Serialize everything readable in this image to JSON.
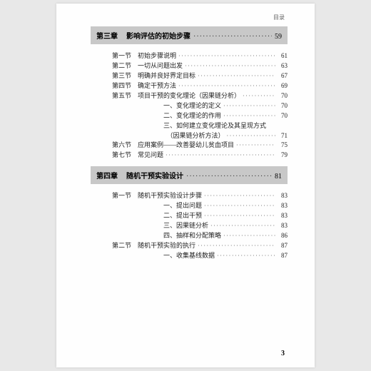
{
  "running_head": "目录",
  "page_number": "3",
  "dot_fill": "······························································",
  "chapters": [
    {
      "label": "第三章",
      "title": "影响评估的初始步骤",
      "page": "59",
      "entries": [
        {
          "sec": "第一节",
          "title": "初始步骤说明",
          "page": "61",
          "sub": false
        },
        {
          "sec": "第二节",
          "title": "一切从问题出发",
          "page": "63",
          "sub": false
        },
        {
          "sec": "第三节",
          "title": "明确并良好界定目标",
          "page": "67",
          "sub": false
        },
        {
          "sec": "第四节",
          "title": "确定干预方法",
          "page": "69",
          "sub": false
        },
        {
          "sec": "第五节",
          "title": "项目干预的变化理论（因果链分析）",
          "page": "70",
          "sub": false
        },
        {
          "sec": "",
          "title": "一、变化理论的定义",
          "page": "70",
          "sub": true
        },
        {
          "sec": "",
          "title": "二、变化理论的作用",
          "page": "70",
          "sub": true
        },
        {
          "sec": "",
          "title": "三、如何建立变化理论及其呈现方式",
          "page": "",
          "sub": true
        },
        {
          "sec": "",
          "title": "（因果链分析方法）",
          "page": "71",
          "sub": true,
          "extraIndent": true
        },
        {
          "sec": "第六节",
          "title": "应用案例——改善婴幼儿贫血项目",
          "page": "75",
          "sub": false
        },
        {
          "sec": "第七节",
          "title": "常见问题",
          "page": "79",
          "sub": false
        }
      ]
    },
    {
      "label": "第四章",
      "title": "随机干预实验设计",
      "page": "81",
      "entries": [
        {
          "sec": "第一节",
          "title": "随机干预实验设计步骤",
          "page": "83",
          "sub": false
        },
        {
          "sec": "",
          "title": "一、提出问题",
          "page": "83",
          "sub": true
        },
        {
          "sec": "",
          "title": "二、提出干预",
          "page": "83",
          "sub": true
        },
        {
          "sec": "",
          "title": "三、因果链分析",
          "page": "83",
          "sub": true
        },
        {
          "sec": "",
          "title": "四、抽样和分配策略",
          "page": "86",
          "sub": true
        },
        {
          "sec": "第二节",
          "title": "随机干预实验的执行",
          "page": "87",
          "sub": false
        },
        {
          "sec": "",
          "title": "一、收集基线数据",
          "page": "87",
          "sub": true
        }
      ]
    }
  ]
}
